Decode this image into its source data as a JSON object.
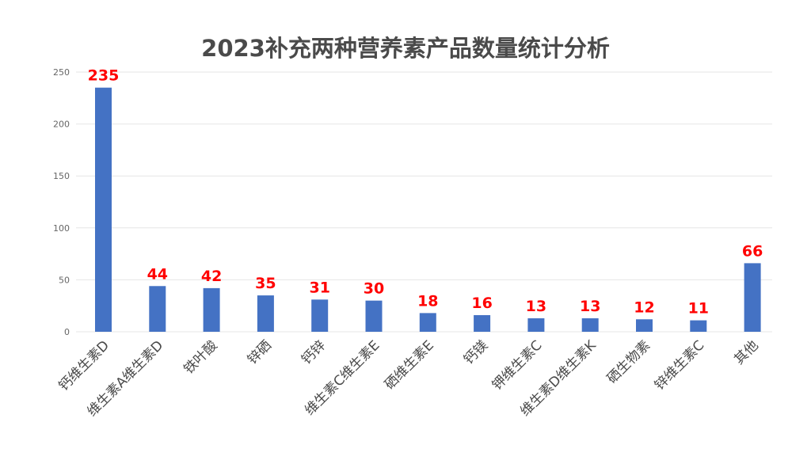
{
  "chart_data": {
    "type": "bar",
    "title": "2023补充两种营养素产品数量统计分析",
    "xlabel": "",
    "ylabel": "",
    "categories": [
      "钙维生素D",
      "维生素A维生素D",
      "铁叶酸",
      "锌硒",
      "钙锌",
      "维生素C维生素E",
      "硒维生素E",
      "钙镁",
      "钾维生素C",
      "维生素D维生素K",
      "硒生物素",
      "锌维生素C",
      "其他"
    ],
    "values": [
      235,
      44,
      42,
      35,
      31,
      30,
      18,
      16,
      13,
      13,
      12,
      11,
      66
    ],
    "ylim": [
      0,
      250
    ],
    "yticks": [
      0,
      50,
      100,
      150,
      200,
      250
    ],
    "grid": true,
    "legend": "none",
    "colors": {
      "bar": "#4472c4",
      "data_label": "#ff0000",
      "grid": "#e6e6e6"
    }
  }
}
